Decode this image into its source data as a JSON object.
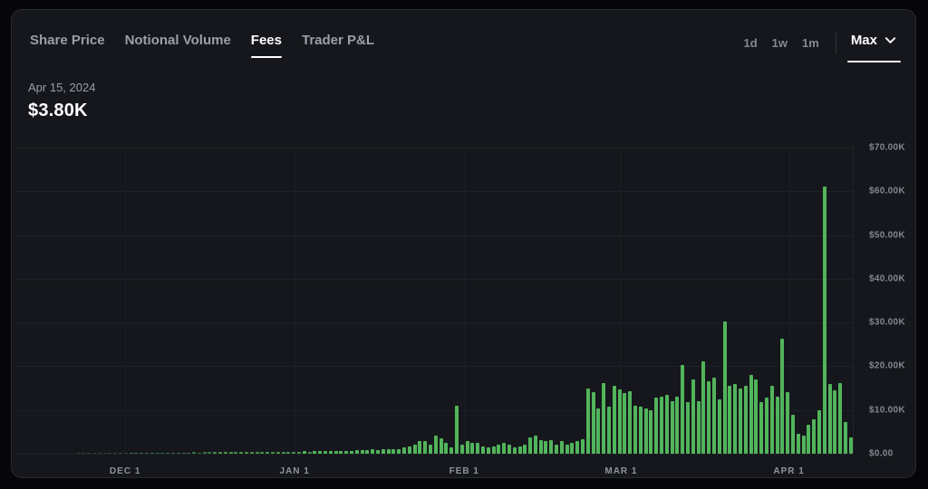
{
  "header": {
    "tabs": [
      {
        "label": "Share Price",
        "active": false
      },
      {
        "label": "Notional Volume",
        "active": false
      },
      {
        "label": "Fees",
        "active": true
      },
      {
        "label": "Trader P&L",
        "active": false
      }
    ],
    "ranges": [
      "1d",
      "1w",
      "1m"
    ],
    "range_selected": "Max"
  },
  "readout": {
    "date": "Apr 15, 2024",
    "value": "$3.80K"
  },
  "colors": {
    "bar": "#52b45b",
    "panel_bg": "#15171c",
    "grid": "#1e2127",
    "active_text": "#ffffff",
    "muted_text": "#9b9fa7"
  },
  "chart_data": {
    "type": "bar",
    "title": "Fees",
    "unit": "thousand USD per day",
    "ylim": [
      0,
      70000
    ],
    "grid": true,
    "legend": "none",
    "y_ticks": [
      "$70.00K",
      "$60.00K",
      "$50.00K",
      "$40.00K",
      "$30.00K",
      "$20.00K",
      "$10.00K",
      "$0.00"
    ],
    "x_ticks": [
      {
        "label": "DEC 1",
        "pct": 13.3
      },
      {
        "label": "JAN 1",
        "pct": 33.5
      },
      {
        "label": "FEB 1",
        "pct": 53.7
      },
      {
        "label": "MAR 1",
        "pct": 72.4
      },
      {
        "label": "APR 1",
        "pct": 92.4
      }
    ],
    "values_k": [
      0,
      0,
      0,
      0,
      0,
      0,
      0,
      0,
      0,
      0,
      0,
      0,
      0.08,
      0.1,
      0.09,
      0.1,
      0.1,
      0.12,
      0.1,
      0.12,
      0.12,
      0.14,
      0.15,
      0.16,
      0.18,
      0.16,
      0.2,
      0.2,
      0.22,
      0.22,
      0.25,
      0.25,
      0.28,
      0.3,
      0.32,
      0.3,
      0.34,
      0.32,
      0.36,
      0.38,
      0.36,
      0.4,
      0.4,
      0.38,
      0.42,
      0.44,
      0.42,
      0.46,
      0.44,
      0.48,
      0.5,
      0.48,
      0.5,
      0.48,
      0.52,
      0.55,
      0.52,
      0.56,
      0.6,
      0.58,
      0.62,
      0.66,
      0.7,
      0.66,
      0.72,
      0.76,
      0.8,
      0.9,
      1.0,
      0.92,
      1.0,
      1.05,
      0.95,
      1.0,
      1.4,
      1.7,
      2.1,
      2.8,
      2.8,
      2.1,
      4.1,
      3.5,
      2.4,
      1.4,
      11.0,
      2.1,
      2.8,
      2.4,
      2.4,
      1.7,
      1.4,
      1.7,
      2.1,
      2.4,
      2.1,
      1.4,
      1.7,
      2.1,
      3.8,
      4.1,
      3.1,
      2.8,
      3.1,
      2.1,
      2.8,
      2.1,
      2.5,
      3.0,
      3.4,
      14.9,
      14.1,
      10.3,
      16.2,
      10.7,
      15.5,
      14.8,
      13.8,
      14.2,
      11.0,
      10.7,
      10.3,
      10.0,
      12.8,
      13.1,
      13.5,
      12.1,
      13.1,
      20.3,
      11.8,
      16.9,
      12.1,
      21.2,
      16.5,
      17.5,
      12.4,
      30.2,
      15.5,
      15.9,
      14.9,
      15.5,
      18.0,
      17.0,
      11.8,
      12.8,
      15.5,
      13.1,
      26.3,
      14.1,
      9.0,
      4.5,
      4.1,
      6.6,
      7.9,
      10.0,
      61.1,
      15.9,
      14.5,
      16.2,
      7.2,
      3.8
    ]
  }
}
